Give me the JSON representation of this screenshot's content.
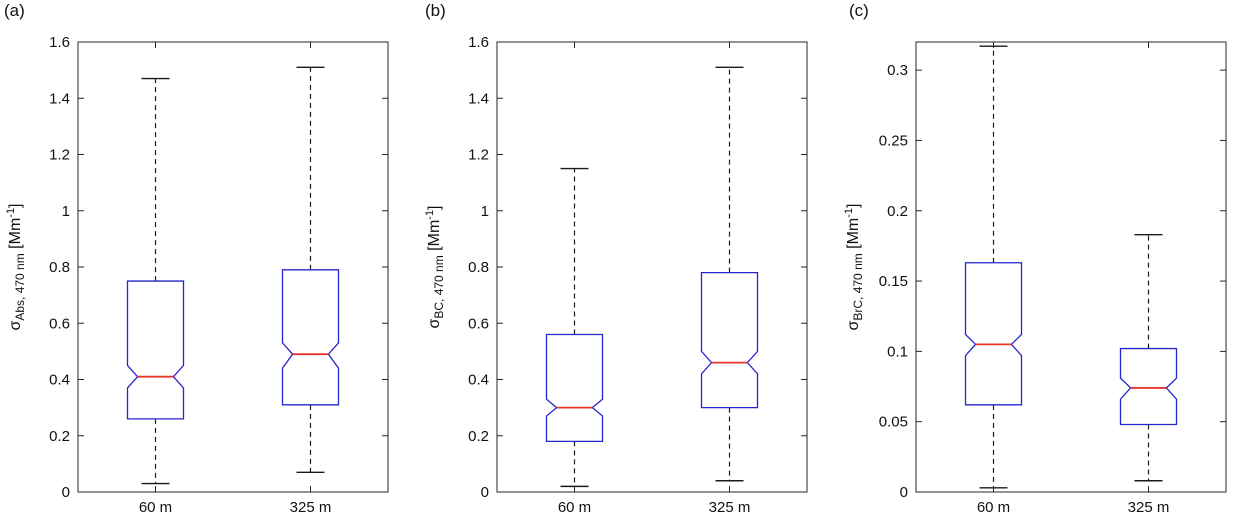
{
  "style": {
    "box_color": "#2525cc",
    "median_color": "#e8352b",
    "whisker_color": "#1a1a1a",
    "axis_color": "#262626",
    "text_color": "#111111",
    "background": "#ffffff"
  },
  "chart_data": [
    {
      "type": "boxplot",
      "panel_label": "(a)",
      "ylabel": {
        "sigma": "σ",
        "subscript": "Abs, 470 nm",
        "unit_open": " [Mm",
        "superscript": "-1",
        "unit_close": "]"
      },
      "ylim": [
        0,
        1.6
      ],
      "yticks": [
        0,
        0.2,
        0.4,
        0.6,
        0.8,
        1.0,
        1.2,
        1.4,
        1.6
      ],
      "ytick_labels": [
        "0",
        "0.2",
        "0.4",
        "0.6",
        "0.8",
        "1",
        "1.2",
        "1.4",
        "1.6"
      ],
      "categories": [
        "60 m",
        "325 m"
      ],
      "legend": null,
      "grid": false,
      "boxes": [
        {
          "category": "60 m",
          "whisker_low": 0.03,
          "q1": 0.26,
          "notch_low": 0.37,
          "median": 0.41,
          "notch_high": 0.45,
          "q3": 0.75,
          "whisker_high": 1.47
        },
        {
          "category": "325 m",
          "whisker_low": 0.07,
          "q1": 0.31,
          "notch_low": 0.44,
          "median": 0.49,
          "notch_high": 0.53,
          "q3": 0.79,
          "whisker_high": 1.51
        }
      ]
    },
    {
      "type": "boxplot",
      "panel_label": "(b)",
      "ylabel": {
        "sigma": "σ",
        "subscript": "BC, 470 nm",
        "unit_open": " [Mm",
        "superscript": "-1",
        "unit_close": "]"
      },
      "ylim": [
        0,
        1.6
      ],
      "yticks": [
        0,
        0.2,
        0.4,
        0.6,
        0.8,
        1.0,
        1.2,
        1.4,
        1.6
      ],
      "ytick_labels": [
        "0",
        "0.2",
        "0.4",
        "0.6",
        "0.8",
        "1",
        "1.2",
        "1.4",
        "1.6"
      ],
      "categories": [
        "60 m",
        "325 m"
      ],
      "legend": null,
      "grid": false,
      "boxes": [
        {
          "category": "60 m",
          "whisker_low": 0.02,
          "q1": 0.18,
          "notch_low": 0.27,
          "median": 0.3,
          "notch_high": 0.33,
          "q3": 0.56,
          "whisker_high": 1.15
        },
        {
          "category": "325 m",
          "whisker_low": 0.04,
          "q1": 0.3,
          "notch_low": 0.42,
          "median": 0.46,
          "notch_high": 0.5,
          "q3": 0.78,
          "whisker_high": 1.51
        }
      ]
    },
    {
      "type": "boxplot",
      "panel_label": "(c)",
      "ylabel": {
        "sigma": "σ",
        "subscript": "BrC, 470 nm",
        "unit_open": " [Mm",
        "superscript": "-1",
        "unit_close": "]"
      },
      "ylim": [
        0,
        0.32
      ],
      "yticks": [
        0,
        0.05,
        0.1,
        0.15,
        0.2,
        0.25,
        0.3
      ],
      "ytick_labels": [
        "0",
        "0.05",
        "0.1",
        "0.15",
        "0.2",
        "0.25",
        "0.3"
      ],
      "categories": [
        "60 m",
        "325 m"
      ],
      "legend": null,
      "grid": false,
      "boxes": [
        {
          "category": "60 m",
          "whisker_low": 0.003,
          "q1": 0.062,
          "notch_low": 0.097,
          "median": 0.105,
          "notch_high": 0.112,
          "q3": 0.163,
          "whisker_high": 0.317
        },
        {
          "category": "325 m",
          "whisker_low": 0.008,
          "q1": 0.048,
          "notch_low": 0.066,
          "median": 0.074,
          "notch_high": 0.081,
          "q3": 0.102,
          "whisker_high": 0.183
        }
      ]
    }
  ]
}
